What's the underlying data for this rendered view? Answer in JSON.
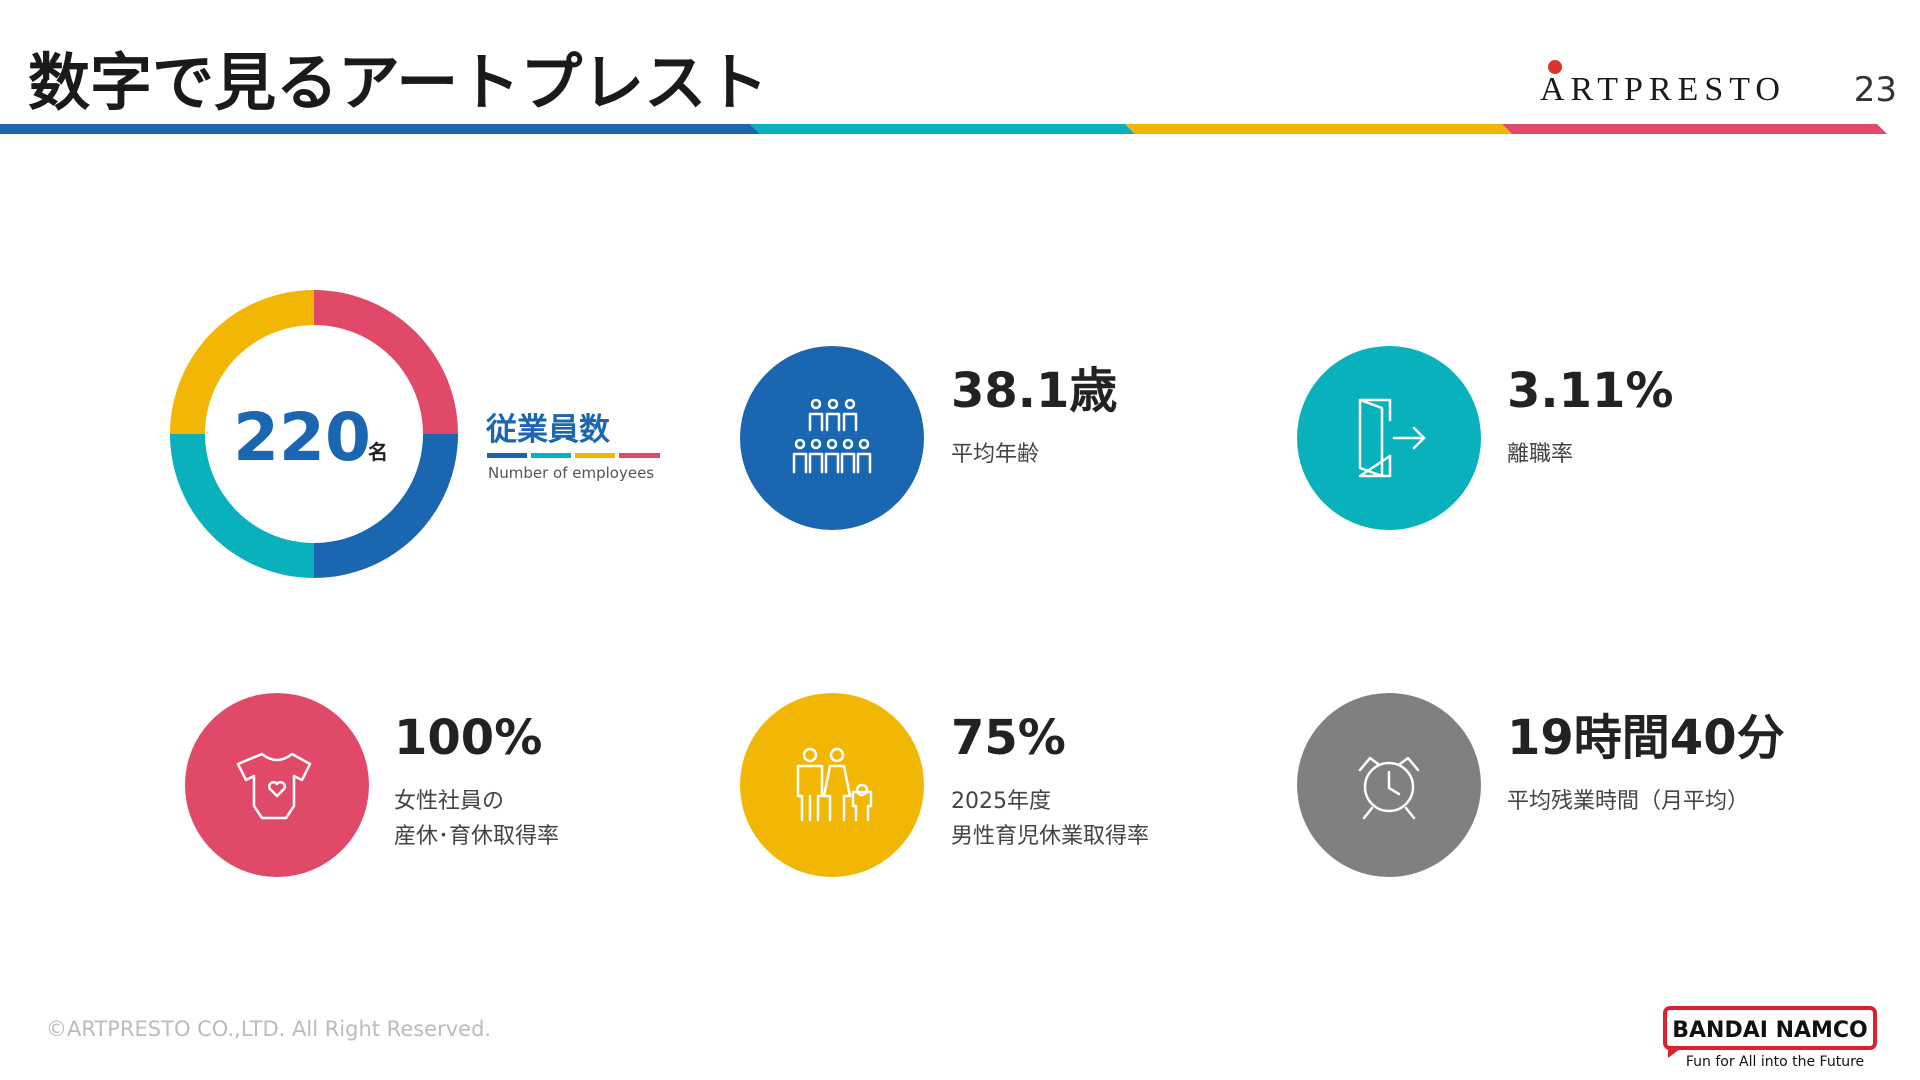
{
  "header": {
    "title": "数字で見るアートプレスト",
    "logo": "ARTPRESTO",
    "page": "23"
  },
  "employees": {
    "value": "220",
    "unit": "名",
    "label": "従業員数",
    "sublabel": "Number of employees"
  },
  "stats": [
    {
      "value": "38.1歳",
      "lines": [
        "平均年齢"
      ]
    },
    {
      "value": "3.11%",
      "lines": [
        "離職率"
      ]
    },
    {
      "value": "100%",
      "lines": [
        "女性社員の",
        "産休･育休取得率"
      ]
    },
    {
      "value": "75%",
      "lines": [
        "2025年度",
        "男性育児休業取得率"
      ]
    },
    {
      "value": "19時間40分",
      "lines": [
        "平均残業時間（月平均）"
      ]
    }
  ],
  "footer": {
    "copyright": "©ARTPRESTO CO.,LTD.  All Right Reserved.",
    "brand": "BANDAI NAMCO",
    "tagline": "Fun for All into the Future"
  }
}
